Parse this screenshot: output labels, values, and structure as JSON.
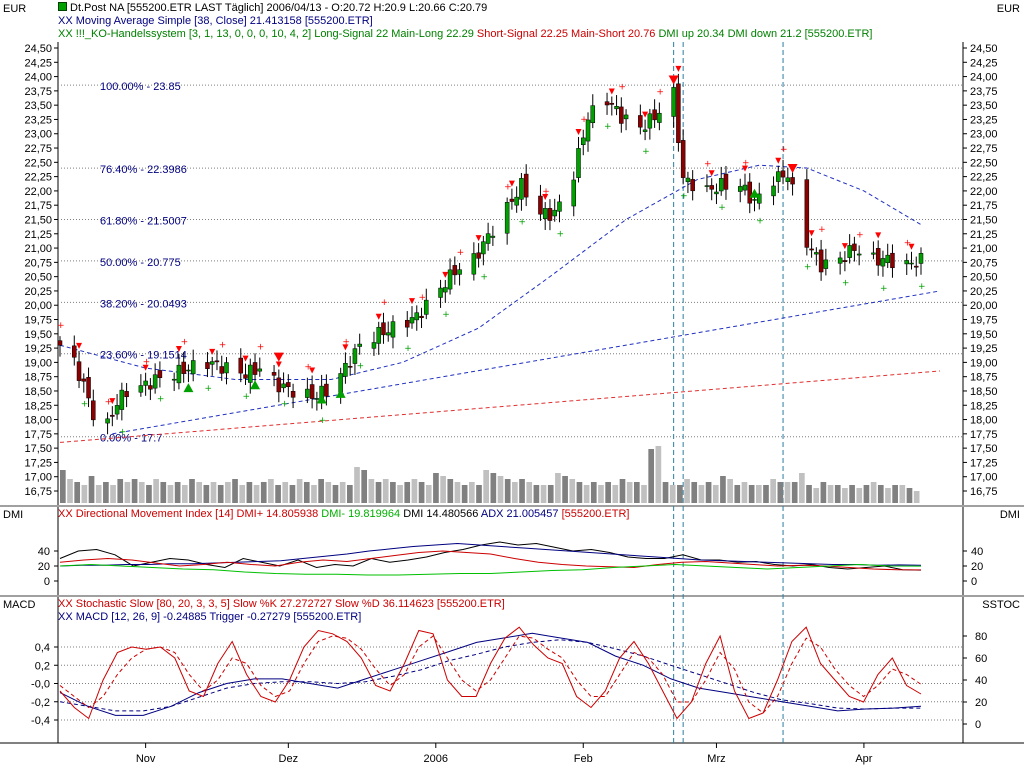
{
  "colors": {
    "navy": "#000080",
    "green_text": "#008000",
    "red": "#ff0000",
    "green": "#00a000",
    "grid": "#7f7f7f",
    "blue_dash": "#2030c0",
    "red_dash": "#e03030",
    "dmi_plus_green": "#00c000",
    "vol_dark": "#808080",
    "vol_light": "#c0c0c0",
    "separator": "#a0a0a0"
  },
  "header": {
    "currency_left": "EUR",
    "currency_right": "EUR",
    "line1": "Dt.Post NA [555200.ETR LAST Täglich] 2006/04/13 - O:20.72 H:20.9 L:20.66 C:20.79",
    "line2_prefix": "XX",
    "line2": " Moving Average Simple [38, Close] 21.413158 [555200.ETR]",
    "line3_prefix": "XX",
    "line3_a": " !!!_KO-Handelssystem [3, 1, 13, 0, 0, 0, 10, 4, 2] Long-Signal 22 Main-Long 22.29 ",
    "line3_b": "Short-Signal 22.25 Main-Short 20.76 ",
    "line3_c": "DMI up 20.34 DMI down 21.2 [555200.ETR]"
  },
  "dmi_panel": {
    "label_left": "DMI",
    "label_right": "DMI",
    "prefix": "XX",
    "text_a": " Directional Movement Index [14] DMI+ 14.805938 ",
    "text_b": "DMI- 19.819964 ",
    "text_c": "DMI 14.480566 ",
    "text_d": "ADX 21.005457 ",
    "text_e": "[555200.ETR]",
    "ticks": [
      "40",
      "20",
      "0"
    ]
  },
  "macd_panel": {
    "label_left": "MACD",
    "label_right": "SSTOC",
    "line1_prefix": "XX",
    "line1": " Stochastic Slow [80, 20, 3, 3, 5] Slow %K 27.272727 Slow %D 36.114623 [555200.ETR]",
    "line2_prefix": "XX",
    "line2": " MACD [12, 26, 9] -0.24885 Trigger -0.27279 [555200.ETR]",
    "macd_ticks": [
      "0,4",
      "0,2",
      "-0,0",
      "-0,2",
      "-0,4"
    ],
    "stoch_ticks": [
      "80",
      "60",
      "40",
      "20",
      "0"
    ]
  },
  "x_axis": {
    "labels": [
      "Nov",
      "Dez",
      "2006",
      "Feb",
      "Mrz",
      "Apr"
    ]
  },
  "chart_data": {
    "type": "candlestick",
    "title": "Dt.Post NA [555200.ETR LAST Täglich]",
    "ylabel": "EUR",
    "ylim": [
      16.6,
      24.6
    ],
    "y_ticks": [
      "24,50",
      "24,25",
      "24,00",
      "23,75",
      "23,50",
      "23,25",
      "23,00",
      "22,75",
      "22,50",
      "22,25",
      "22,00",
      "21,75",
      "21,50",
      "21,25",
      "21,00",
      "20,75",
      "20,50",
      "20,25",
      "20,00",
      "19,75",
      "19,50",
      "19,25",
      "19,00",
      "18,75",
      "18,50",
      "18,25",
      "18,00",
      "17,75",
      "17,50",
      "17,25",
      "17,00",
      "16,75"
    ],
    "x_range": [
      "2005-10-14",
      "2006-04-13"
    ],
    "fibonacci": [
      {
        "label": "100.00% - 23.85",
        "value": 23.85
      },
      {
        "label": "76.40% - 22.3986",
        "value": 22.3986
      },
      {
        "label": "61.80% - 21.5007",
        "value": 21.5007
      },
      {
        "label": "50.00% - 20.775",
        "value": 20.775
      },
      {
        "label": "38.20% - 20.0493",
        "value": 20.0493
      },
      {
        "label": "23.60% - 19.1514",
        "value": 19.1514
      },
      {
        "label": "0.00% - 17.7",
        "value": 17.7
      }
    ],
    "close_path": [
      [
        "2005-10-14",
        19.3
      ],
      [
        "2005-10-17",
        19.0
      ],
      [
        "2005-10-19",
        18.6
      ],
      [
        "2005-10-21",
        18.1
      ],
      [
        "2005-10-24",
        17.9
      ],
      [
        "2005-10-26",
        18.3
      ],
      [
        "2005-10-28",
        18.5
      ],
      [
        "2005-11-01",
        18.6
      ],
      [
        "2005-11-03",
        18.7
      ],
      [
        "2005-11-07",
        18.8
      ],
      [
        "2005-11-10",
        18.9
      ],
      [
        "2005-11-14",
        19.0
      ],
      [
        "2005-11-18",
        18.9
      ],
      [
        "2005-11-22",
        18.8
      ],
      [
        "2005-11-25",
        18.9
      ],
      [
        "2005-11-29",
        18.6
      ],
      [
        "2005-12-02",
        18.5
      ],
      [
        "2005-12-06",
        18.4
      ],
      [
        "2005-12-09",
        18.5
      ],
      [
        "2005-12-13",
        18.9
      ],
      [
        "2005-12-16",
        19.3
      ],
      [
        "2005-12-20",
        19.5
      ],
      [
        "2005-12-23",
        19.6
      ],
      [
        "2005-12-28",
        19.8
      ],
      [
        "2006-01-02",
        20.3
      ],
      [
        "2006-01-05",
        20.6
      ],
      [
        "2006-01-09",
        20.8
      ],
      [
        "2006-01-12",
        21.2
      ],
      [
        "2006-01-16",
        21.7
      ],
      [
        "2006-01-19",
        22.1
      ],
      [
        "2006-01-23",
        21.6
      ],
      [
        "2006-01-26",
        21.6
      ],
      [
        "2006-01-30",
        22.3
      ],
      [
        "2006-02-02",
        23.3
      ],
      [
        "2006-02-06",
        23.6
      ],
      [
        "2006-02-09",
        23.3
      ],
      [
        "2006-02-13",
        23.1
      ],
      [
        "2006-02-16",
        23.3
      ],
      [
        "2006-02-20",
        23.7
      ],
      [
        "2006-02-22",
        22.2
      ],
      [
        "2006-02-27",
        22.0
      ],
      [
        "2006-03-02",
        22.1
      ],
      [
        "2006-03-06",
        22.1
      ],
      [
        "2006-03-09",
        21.8
      ],
      [
        "2006-03-13",
        22.2
      ],
      [
        "2006-03-16",
        22.3
      ],
      [
        "2006-03-20",
        21.1
      ],
      [
        "2006-03-23",
        20.7
      ],
      [
        "2006-03-27",
        20.8
      ],
      [
        "2006-03-30",
        21.0
      ],
      [
        "2006-04-03",
        20.8
      ],
      [
        "2006-04-06",
        20.8
      ],
      [
        "2006-04-10",
        20.7
      ],
      [
        "2006-04-13",
        20.79
      ]
    ],
    "volume_relative": [
      0.55,
      0.4,
      0.35,
      0.3,
      0.45,
      0.3,
      0.35,
      0.3,
      0.4,
      0.35,
      0.4,
      0.35,
      0.3,
      0.4,
      0.35,
      0.3,
      0.35,
      0.3,
      0.4,
      0.35,
      0.3,
      0.35,
      0.3,
      0.35,
      0.4,
      0.3,
      0.35,
      0.3,
      0.35,
      0.4,
      0.3,
      0.35,
      0.3,
      0.4,
      0.35,
      0.3,
      0.4,
      0.35,
      0.3,
      0.35,
      0.3,
      0.6,
      0.55,
      0.4,
      0.35,
      0.4,
      0.35,
      0.3,
      0.35,
      0.4,
      0.35,
      0.3,
      0.5,
      0.45,
      0.4,
      0.35,
      0.3,
      0.35,
      0.3,
      0.55,
      0.5,
      0.45,
      0.4,
      0.35,
      0.4,
      0.35,
      0.3,
      0.3,
      0.3,
      0.5,
      0.45,
      0.4,
      0.35,
      0.3,
      0.35,
      0.3,
      0.35,
      0.3,
      0.4,
      0.35,
      0.35,
      0.3,
      0.9,
      0.95,
      0.35,
      0.3,
      0.3,
      0.4,
      0.35,
      0.3,
      0.35,
      0.3,
      0.45,
      0.4,
      0.3,
      0.35,
      0.3,
      0.3,
      0.3,
      0.4,
      0.35,
      0.35,
      0.35,
      0.5,
      0.3,
      0.25,
      0.35,
      0.3,
      0.3,
      0.25,
      0.3,
      0.25,
      0.3,
      0.35,
      0.3,
      0.25,
      0.3,
      0.3,
      0.25,
      0.2
    ],
    "ma38_path": [
      [
        "2005-10-14",
        19.3
      ],
      [
        "2005-11-01",
        18.9
      ],
      [
        "2005-11-20",
        18.7
      ],
      [
        "2005-12-10",
        18.7
      ],
      [
        "2005-12-25",
        19.0
      ],
      [
        "2006-01-10",
        19.6
      ],
      [
        "2006-01-25",
        20.5
      ],
      [
        "2006-02-10",
        21.5
      ],
      [
        "2006-02-25",
        22.2
      ],
      [
        "2006-03-10",
        22.45
      ],
      [
        "2006-03-20",
        22.4
      ],
      [
        "2006-04-01",
        22.0
      ],
      [
        "2006-04-13",
        21.41
      ]
    ],
    "trendline_blue": [
      [
        "2005-10-25",
        17.75
      ],
      [
        "2006-04-17",
        20.25
      ]
    ],
    "trendline_red": [
      [
        "2005-10-14",
        17.6
      ],
      [
        "2006-04-17",
        18.85
      ]
    ],
    "dmi": {
      "ylim": [
        -8,
        58
      ],
      "dmi": [
        30,
        40,
        42,
        35,
        20,
        25,
        30,
        28,
        22,
        18,
        30,
        25,
        20,
        28,
        18,
        22,
        20,
        30,
        25,
        28,
        32,
        38,
        42,
        48,
        52,
        48,
        50,
        45,
        40,
        42,
        38,
        32,
        30,
        30,
        35,
        28,
        28,
        25,
        26,
        22,
        20,
        22,
        18,
        16,
        18,
        20,
        15,
        14.5
      ],
      "adx": [
        20,
        21,
        21,
        22,
        22,
        23,
        23,
        24,
        25,
        26,
        27,
        30,
        33,
        36,
        40,
        43,
        46,
        48,
        50,
        48,
        46,
        44,
        42,
        40,
        38,
        36,
        34,
        32,
        30,
        28,
        27,
        26,
        25,
        24,
        23,
        22,
        22,
        21,
        21.5,
        21
      ],
      "dmi_plus": [
        25,
        28,
        30,
        28,
        24,
        20,
        22,
        25,
        22,
        20,
        25,
        28,
        26,
        30,
        34,
        38,
        40,
        38,
        36,
        30,
        25,
        22,
        20,
        19,
        18,
        22,
        25,
        26,
        24,
        22,
        20,
        21,
        20,
        18,
        16,
        15,
        14.8
      ],
      "dmi_minus": [
        20,
        22,
        20,
        18,
        16,
        15,
        12,
        10,
        9,
        9,
        8,
        8,
        9,
        10,
        10,
        12,
        14,
        15,
        18,
        20,
        22,
        20,
        18,
        16,
        18,
        20,
        22,
        20,
        19.8
      ]
    },
    "macd": {
      "ylim": [
        -0.5,
        0.62
      ],
      "macd": [
        -0.1,
        -0.25,
        -0.35,
        -0.35,
        -0.25,
        -0.1,
        0.0,
        0.05,
        0.05,
        0.0,
        -0.05,
        0.05,
        0.15,
        0.25,
        0.35,
        0.45,
        0.5,
        0.55,
        0.5,
        0.45,
        0.3,
        0.2,
        0.05,
        -0.05,
        -0.1,
        -0.15,
        -0.2,
        -0.25,
        -0.3,
        -0.28,
        -0.27,
        -0.25
      ],
      "trigger": [
        -0.2,
        -0.25,
        -0.3,
        -0.3,
        -0.25,
        -0.15,
        -0.05,
        0.0,
        0.02,
        0.02,
        0.0,
        0.02,
        0.08,
        0.15,
        0.25,
        0.32,
        0.4,
        0.45,
        0.48,
        0.45,
        0.38,
        0.3,
        0.2,
        0.1,
        0.0,
        -0.1,
        -0.18,
        -0.22,
        -0.27,
        -0.28,
        -0.27,
        -0.27
      ]
    },
    "stochastic": {
      "ylim": [
        -8,
        100
      ],
      "slow_k": [
        30,
        15,
        5,
        40,
        65,
        70,
        68,
        70,
        60,
        30,
        25,
        55,
        75,
        45,
        25,
        20,
        40,
        70,
        85,
        82,
        75,
        60,
        35,
        30,
        55,
        85,
        82,
        40,
        25,
        25,
        55,
        78,
        88,
        72,
        60,
        55,
        25,
        15,
        30,
        60,
        75,
        55,
        30,
        5,
        20,
        55,
        80,
        30,
        5,
        10,
        40,
        75,
        88,
        55,
        40,
        25,
        20,
        45,
        60,
        35,
        27.3
      ],
      "slow_d": [
        35,
        25,
        15,
        25,
        45,
        60,
        68,
        70,
        65,
        45,
        30,
        40,
        60,
        55,
        35,
        25,
        30,
        55,
        75,
        80,
        78,
        68,
        50,
        35,
        45,
        70,
        80,
        60,
        40,
        30,
        40,
        60,
        80,
        78,
        68,
        60,
        40,
        25,
        25,
        45,
        65,
        60,
        45,
        20,
        20,
        40,
        65,
        50,
        20,
        10,
        25,
        55,
        78,
        70,
        50,
        35,
        25,
        35,
        50,
        45,
        36.1
      ]
    }
  }
}
